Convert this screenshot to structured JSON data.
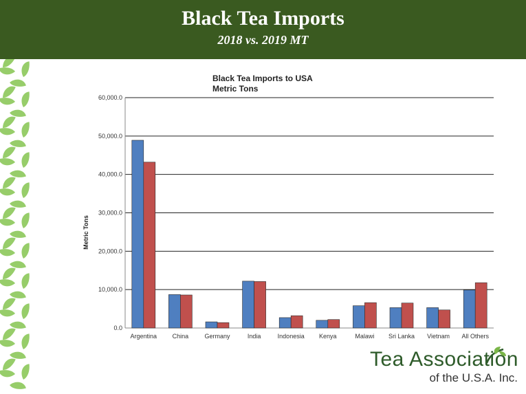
{
  "header": {
    "title": "Black Tea Imports",
    "subtitle": "2018 vs. 2019 MT"
  },
  "logo": {
    "line1": "Tea Association",
    "line2": "of the U.S.A. Inc."
  },
  "colors": {
    "header_bg": "#3a5a20",
    "leaf": "#8cc85a",
    "series_2018": "#4f7fc0",
    "series_2019": "#c0504d",
    "logo_green": "#2e5b2a"
  },
  "chart_data": {
    "type": "bar",
    "title": "Black Tea Imports to USA",
    "subtitle": "Metric Tons",
    "xlabel": "",
    "ylabel": "Metric Tons",
    "ylim": [
      0,
      60000
    ],
    "yticks": [
      "0.0",
      "10,000.0",
      "20,000.0",
      "30,000.0",
      "40,000.0",
      "50,000.0",
      "60,000.0"
    ],
    "grid": true,
    "legend": "none",
    "categories": [
      "Argentina",
      "China",
      "Germany",
      "India",
      "Indonesia",
      "Kenya",
      "Malawi",
      "Sri Lanka",
      "Vietnam",
      "All Others"
    ],
    "series": [
      {
        "color": "#4f7fc0",
        "values": [
          48900,
          8700,
          1600,
          12200,
          2700,
          2000,
          5800,
          5300,
          5300,
          9900
        ]
      },
      {
        "color": "#c0504d",
        "values": [
          43200,
          8600,
          1400,
          12100,
          3200,
          2200,
          6600,
          6500,
          4700,
          11800
        ]
      }
    ]
  }
}
